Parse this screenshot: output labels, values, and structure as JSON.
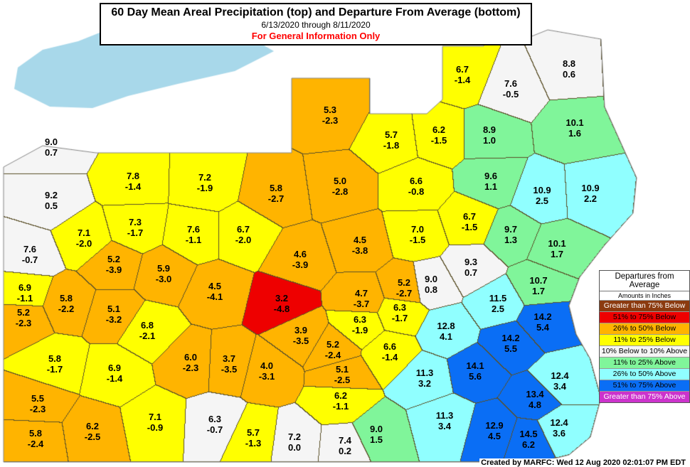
{
  "title": {
    "main": "60 Day Mean Areal Precipitation (top) and Departure From Average (bottom)",
    "dates": "6/13/2020 through  8/11/2020",
    "note": "For General Information Only"
  },
  "legend": {
    "title": "Departures from Average",
    "subtitle": "Amounts in Inches",
    "items": [
      {
        "label": "Greater than 75% Below",
        "color": "#8b3a0f",
        "text_color": "#ffffff"
      },
      {
        "label": "51% to 75% Below",
        "color": "#ee0000",
        "text_color": "#000000"
      },
      {
        "label": "26% to 50% Below",
        "color": "#ffb400",
        "text_color": "#000000"
      },
      {
        "label": "11% to 25% Below",
        "color": "#ffff00",
        "text_color": "#000000"
      },
      {
        "label": "10% Below to 10% Above",
        "color": "#f5f5f5",
        "text_color": "#000000"
      },
      {
        "label": "11% to 25% Above",
        "color": "#80f59a",
        "text_color": "#000000"
      },
      {
        "label": "26% to 50% Above",
        "color": "#90ffff",
        "text_color": "#000000"
      },
      {
        "label": "51% to 75% Above",
        "color": "#0a6ef5",
        "text_color": "#000000"
      },
      {
        "label": "Greater than 75% Above",
        "color": "#cc33cc",
        "text_color": "#ffffff"
      }
    ]
  },
  "water_color": "#a8d8ea",
  "regions": [
    {
      "precip": "6.7",
      "departure": "-1.4",
      "category": 3
    },
    {
      "precip": "7.6",
      "departure": "-0.5",
      "category": 4
    },
    {
      "precip": "8.8",
      "departure": "0.6",
      "category": 4
    },
    {
      "precip": "5.3",
      "departure": "-2.3",
      "category": 2
    },
    {
      "precip": "5.7",
      "departure": "-1.8",
      "category": 3
    },
    {
      "precip": "6.2",
      "departure": "-1.5",
      "category": 3
    },
    {
      "precip": "8.9",
      "departure": "1.0",
      "category": 5
    },
    {
      "precip": "10.1",
      "departure": "1.6",
      "category": 5
    },
    {
      "precip": "9.0",
      "departure": "0.7",
      "category": 4
    },
    {
      "precip": "7.8",
      "departure": "-1.4",
      "category": 3
    },
    {
      "precip": "7.2",
      "departure": "-1.9",
      "category": 3
    },
    {
      "precip": "5.8",
      "departure": "-2.7",
      "category": 2
    },
    {
      "precip": "5.0",
      "departure": "-2.8",
      "category": 2
    },
    {
      "precip": "6.6",
      "departure": "-0.8",
      "category": 3
    },
    {
      "precip": "9.6",
      "departure": "1.1",
      "category": 5
    },
    {
      "precip": "10.9",
      "departure": "2.5",
      "category": 6
    },
    {
      "precip": "10.9",
      "departure": "2.2",
      "category": 6
    },
    {
      "precip": "9.2",
      "departure": "0.5",
      "category": 4
    },
    {
      "precip": "7.1",
      "departure": "-2.0",
      "category": 3
    },
    {
      "precip": "7.3",
      "departure": "-1.7",
      "category": 3
    },
    {
      "precip": "7.6",
      "departure": "-1.1",
      "category": 3
    },
    {
      "precip": "6.7",
      "departure": "-2.0",
      "category": 3
    },
    {
      "precip": "4.5",
      "departure": "-3.8",
      "category": 2
    },
    {
      "precip": "7.0",
      "departure": "-1.5",
      "category": 3
    },
    {
      "precip": "6.7",
      "departure": "-1.5",
      "category": 3
    },
    {
      "precip": "9.7",
      "departure": "1.3",
      "category": 5
    },
    {
      "precip": "10.1",
      "departure": "1.7",
      "category": 5
    },
    {
      "precip": "7.6",
      "departure": "-0.7",
      "category": 4
    },
    {
      "precip": "5.2",
      "departure": "-3.9",
      "category": 2
    },
    {
      "precip": "5.9",
      "departure": "-3.0",
      "category": 2
    },
    {
      "precip": "4.6",
      "departure": "-3.9",
      "category": 2
    },
    {
      "precip": "9.3",
      "departure": "0.7",
      "category": 4
    },
    {
      "precip": "9.0",
      "departure": "0.8",
      "category": 4
    },
    {
      "precip": "10.7",
      "departure": "1.7",
      "category": 5
    },
    {
      "precip": "6.9",
      "departure": "-1.1",
      "category": 3
    },
    {
      "precip": "5.8",
      "departure": "-2.2",
      "category": 2
    },
    {
      "precip": "4.5",
      "departure": "-4.1",
      "category": 2
    },
    {
      "precip": "3.2",
      "departure": "-4.8",
      "category": 1
    },
    {
      "precip": "4.7",
      "departure": "-3.7",
      "category": 2
    },
    {
      "precip": "5.2",
      "departure": "-2.7",
      "category": 2
    },
    {
      "precip": "5.1",
      "departure": "-3.2",
      "category": 2
    },
    {
      "precip": "11.5",
      "departure": "2.5",
      "category": 6
    },
    {
      "precip": "14.2",
      "departure": "5.4",
      "category": 7
    },
    {
      "precip": "5.2",
      "departure": "-2.3",
      "category": 2
    },
    {
      "precip": "6.3",
      "departure": "-1.7",
      "category": 3
    },
    {
      "precip": "6.3",
      "departure": "-1.9",
      "category": 3
    },
    {
      "precip": "12.8",
      "departure": "4.1",
      "category": 6
    },
    {
      "precip": "6.8",
      "departure": "-2.1",
      "category": 3
    },
    {
      "precip": "14.2",
      "departure": "5.5",
      "category": 7
    },
    {
      "precip": "3.9",
      "departure": "-3.5",
      "category": 2
    },
    {
      "precip": "5.2",
      "departure": "-2.4",
      "category": 2
    },
    {
      "precip": "6.0",
      "departure": "-2.3",
      "category": 2
    },
    {
      "precip": "3.7",
      "departure": "-3.5",
      "category": 2
    },
    {
      "precip": "4.0",
      "departure": "-3.1",
      "category": 2
    },
    {
      "precip": "5.1",
      "departure": "-2.5",
      "category": 2
    },
    {
      "precip": "5.8",
      "departure": "-1.7",
      "category": 3
    },
    {
      "precip": "6.9",
      "departure": "-1.4",
      "category": 3
    },
    {
      "precip": "14.1",
      "departure": "5.6",
      "category": 7
    },
    {
      "precip": "6.6",
      "departure": "-1.4",
      "category": 3
    },
    {
      "precip": "11.3",
      "departure": "3.2",
      "category": 6
    },
    {
      "precip": "12.4",
      "departure": "3.4",
      "category": 6
    },
    {
      "precip": "5.5",
      "departure": "-2.3",
      "category": 2
    },
    {
      "precip": "13.4",
      "departure": "4.8",
      "category": 7
    },
    {
      "precip": "6.2",
      "departure": "-1.1",
      "category": 3
    },
    {
      "precip": "7.1",
      "departure": "-0.9",
      "category": 3
    },
    {
      "precip": "6.3",
      "departure": "-0.7",
      "category": 4
    },
    {
      "precip": "5.7",
      "departure": "-1.3",
      "category": 3
    },
    {
      "precip": "7.2",
      "departure": "0.0",
      "category": 4
    },
    {
      "precip": "7.4",
      "departure": "0.2",
      "category": 4
    },
    {
      "precip": "9.0",
      "departure": "1.5",
      "category": 5
    },
    {
      "precip": "11.3",
      "departure": "3.4",
      "category": 6
    },
    {
      "precip": "12.9",
      "departure": "4.5",
      "category": 7
    },
    {
      "precip": "12.4",
      "departure": "3.6",
      "category": 6
    },
    {
      "precip": "14.5",
      "departure": "6.2",
      "category": 7
    },
    {
      "precip": "5.8",
      "departure": "-2.4",
      "category": 2
    },
    {
      "precip": "6.2",
      "departure": "-2.5",
      "category": 2
    }
  ],
  "footer": "Created by MARFC: Wed 12 Aug 2020 02:01:07 PM EDT"
}
